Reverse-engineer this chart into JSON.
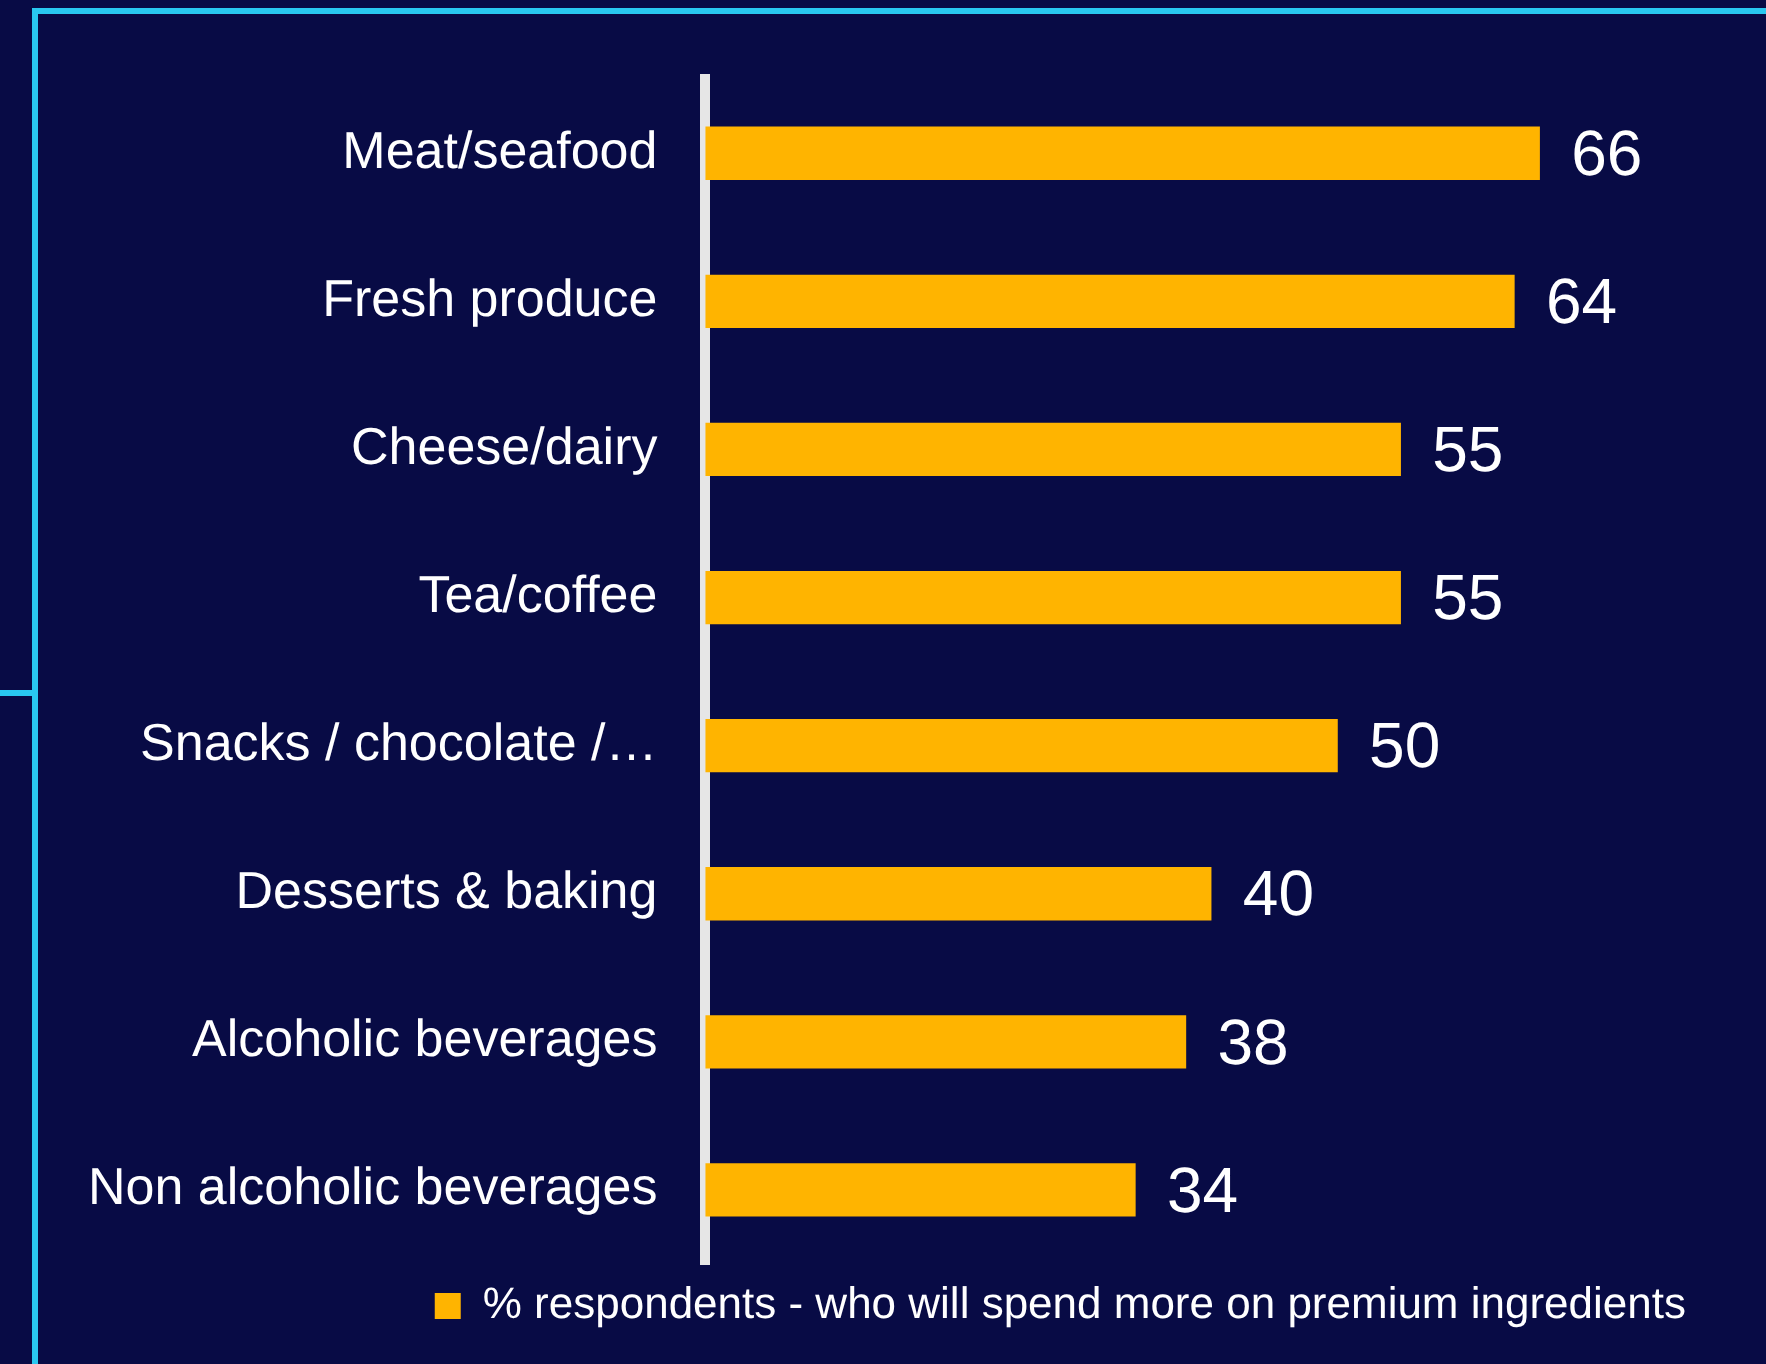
{
  "chart_data": {
    "type": "bar",
    "orientation": "horizontal",
    "categories": [
      "Meat/seafood",
      "Fresh produce",
      "Cheese/dairy",
      "Tea/coffee",
      "Snacks / chocolate /…",
      "Desserts & baking",
      "Alcoholic beverages",
      "Non alcoholic beverages"
    ],
    "series": [
      {
        "name": "% respondents - who will spend more on premium ingredients",
        "color": "#ffb400",
        "values": [
          66,
          64,
          55,
          55,
          50,
          40,
          38,
          34
        ]
      }
    ],
    "data_labels": true,
    "legend": "bottom"
  }
}
